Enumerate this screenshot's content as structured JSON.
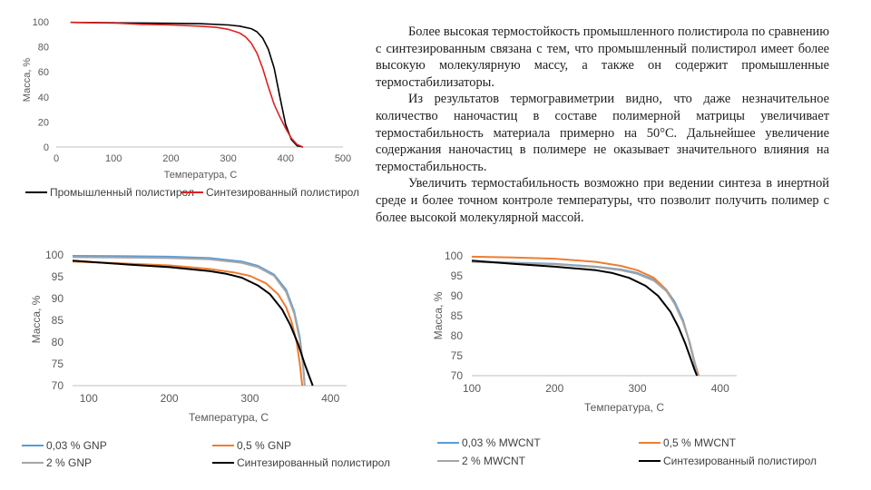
{
  "text": {
    "paragraphs": [
      "Более высокая термостойкость промышленного полистирола по сравнению с синтезированным связана с тем, что промышленный полистирол имеет более высокую молекулярную массу, а также он содержит промышленные термостабилизаторы.",
      "Из результатов термогравиметрии видно, что даже незначительное количество наночастиц в составе полимерной матрицы увеличивает термостабильность материала примерно на 50°С. Дальнейшее увеличение содержания наночастиц в полимере не оказывает значительного влияния на термостабильность.",
      "Увеличить термостабильность возможно при ведении синтеза в инертной среде и более точном контроле температуры, что позволит получить полимер с более высокой молекулярной массой."
    ]
  },
  "chart_data": [
    {
      "type": "line",
      "xlabel": "Температура, С",
      "ylabel": "Масса, %",
      "xlim": [
        0,
        500
      ],
      "ylim": [
        0,
        100
      ],
      "xticks": [
        0,
        100,
        200,
        300,
        400,
        500
      ],
      "yticks": [
        0,
        20,
        40,
        60,
        80,
        100
      ],
      "grid": false,
      "legend_position": "bottom",
      "series": [
        {
          "name": "Промышленный полистирол",
          "color": "#000000",
          "x": [
            25,
            100,
            150,
            200,
            250,
            300,
            320,
            340,
            350,
            360,
            370,
            380,
            390,
            400,
            410,
            420,
            430
          ],
          "y": [
            99.5,
            99.2,
            99,
            98.8,
            98.5,
            97.5,
            96.5,
            94.5,
            92,
            87,
            78,
            63,
            40,
            18,
            6,
            1,
            0
          ]
        },
        {
          "name": "Синтезированный полистирол",
          "color": "#e02020",
          "x": [
            25,
            100,
            150,
            200,
            250,
            280,
            300,
            320,
            330,
            340,
            350,
            360,
            370,
            380,
            390,
            400,
            410,
            420,
            430
          ],
          "y": [
            99.5,
            99,
            98,
            97.5,
            96.5,
            95.5,
            94,
            91,
            88,
            83,
            75,
            63,
            48,
            34,
            24,
            15,
            7,
            2,
            0
          ]
        }
      ]
    },
    {
      "type": "line",
      "xlabel": "Температура, С",
      "ylabel": "Масса, %",
      "xlim": [
        80,
        420
      ],
      "ylim": [
        70,
        100
      ],
      "xticks": [
        100,
        200,
        300,
        400
      ],
      "yticks": [
        70,
        75,
        80,
        85,
        90,
        95,
        100
      ],
      "grid": false,
      "legend_position": "bottom",
      "series": [
        {
          "name": "0,03 % GNP",
          "color": "#5b9bd5",
          "x": [
            80,
            150,
            200,
            250,
            290,
            310,
            330,
            345,
            355,
            362,
            366,
            368
          ],
          "y": [
            99.8,
            99.7,
            99.6,
            99.3,
            98.5,
            97.5,
            95.5,
            92,
            87,
            81,
            75,
            70
          ]
        },
        {
          "name": "0,5 % GNP",
          "color": "#ed7d31",
          "x": [
            80,
            150,
            200,
            250,
            280,
            300,
            320,
            335,
            345,
            352,
            358,
            362,
            365
          ],
          "y": [
            98.5,
            98,
            97.6,
            96.8,
            96,
            95.2,
            93.5,
            91,
            88,
            84.5,
            80,
            75,
            70
          ]
        },
        {
          "name": "2 % GNP",
          "color": "#a5a5a5",
          "x": [
            80,
            150,
            200,
            250,
            290,
            310,
            330,
            345,
            355,
            362,
            366,
            368
          ],
          "y": [
            99.5,
            99.4,
            99.3,
            99,
            98.2,
            97.2,
            95.2,
            91.5,
            86.5,
            80.5,
            74.5,
            70
          ]
        },
        {
          "name": "Синтезированный полистирол",
          "color": "#000000",
          "x": [
            80,
            150,
            200,
            250,
            270,
            290,
            310,
            325,
            340,
            350,
            360,
            368,
            374,
            378
          ],
          "y": [
            98.7,
            97.8,
            97.2,
            96.3,
            95.7,
            94.8,
            93,
            91,
            87.5,
            84,
            79.5,
            75,
            72,
            70
          ]
        }
      ]
    },
    {
      "type": "line",
      "xlabel": "Температура, С",
      "ylabel": "Масса, %",
      "xlim": [
        100,
        420
      ],
      "ylim": [
        70,
        100
      ],
      "xticks": [
        100,
        200,
        300,
        400
      ],
      "yticks": [
        70,
        75,
        80,
        85,
        90,
        95,
        100
      ],
      "grid": false,
      "legend_position": "bottom",
      "series": [
        {
          "name": "0,03 % MWCNT",
          "color": "#5b9bd5",
          "x": [
            100,
            150,
            200,
            250,
            280,
            300,
            320,
            335,
            345,
            355,
            362,
            368,
            372
          ],
          "y": [
            98.6,
            98.3,
            98,
            97.3,
            96.6,
            95.7,
            94,
            91.5,
            88.5,
            84,
            79,
            74,
            70
          ]
        },
        {
          "name": "0,5 % MWCNT",
          "color": "#ed7d31",
          "x": [
            100,
            150,
            200,
            250,
            280,
            300,
            320,
            335,
            345,
            355,
            363,
            369,
            374
          ],
          "y": [
            99.8,
            99.6,
            99.3,
            98.5,
            97.5,
            96.4,
            94.5,
            91.5,
            88,
            83.5,
            78.5,
            73.5,
            70
          ]
        },
        {
          "name": "2 % MWCNT",
          "color": "#a5a5a5",
          "x": [
            100,
            150,
            200,
            250,
            280,
            300,
            320,
            335,
            345,
            355,
            363,
            369,
            373
          ],
          "y": [
            98.5,
            98.2,
            97.9,
            97.2,
            96.4,
            95.5,
            93.8,
            91.2,
            88,
            83.5,
            78.5,
            73.5,
            70
          ]
        },
        {
          "name": "Синтезированный полистирол",
          "color": "#000000",
          "x": [
            100,
            150,
            200,
            250,
            270,
            290,
            310,
            325,
            340,
            350,
            358,
            364,
            369,
            372
          ],
          "y": [
            98.8,
            98,
            97.3,
            96.4,
            95.7,
            94.5,
            92.5,
            90,
            86,
            82,
            78,
            74.5,
            71.5,
            70
          ]
        }
      ]
    }
  ]
}
